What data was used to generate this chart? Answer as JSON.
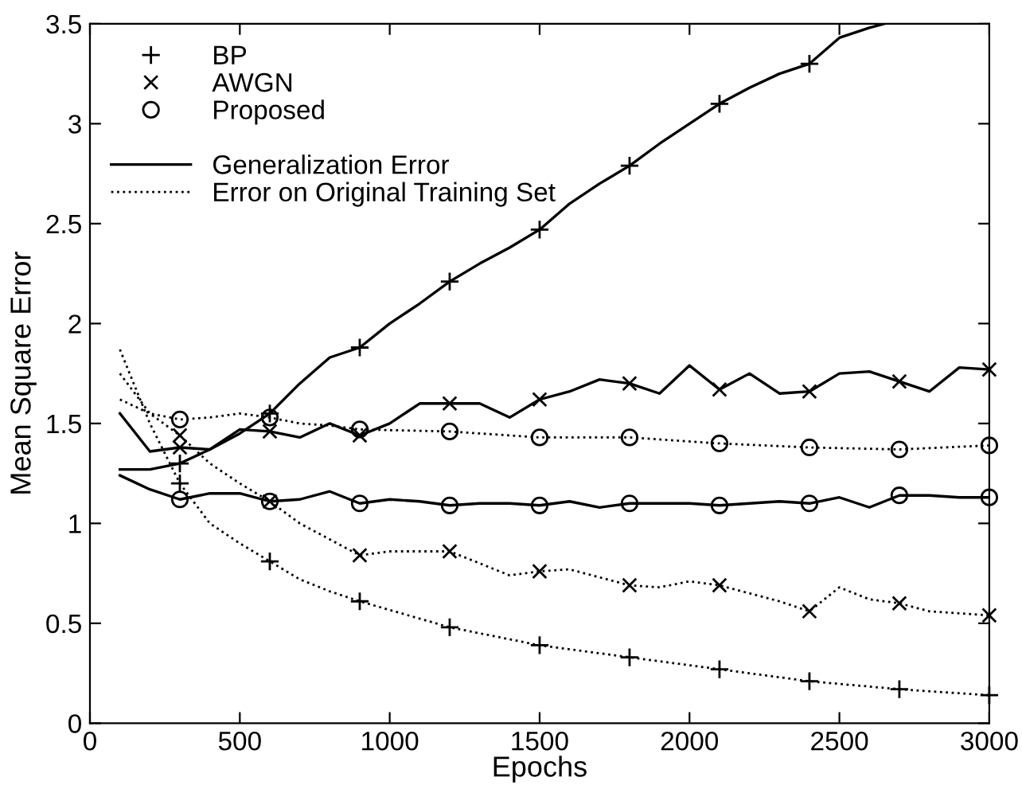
{
  "chart_data": {
    "type": "line",
    "xlabel": "Epochs",
    "ylabel": "Mean Square Error",
    "xlim": [
      0,
      3000
    ],
    "ylim": [
      0,
      3.5
    ],
    "xticks": [
      0,
      500,
      1000,
      1500,
      2000,
      2500,
      3000
    ],
    "yticks": [
      0,
      0.5,
      1,
      1.5,
      2,
      2.5,
      3,
      3.5
    ],
    "grid": false,
    "legend": "top left",
    "annotations": [
      "Generalization Error",
      "Error on Original Training Set"
    ],
    "series": [
      {
        "color": "#000000",
        "line_style": "solid",
        "x": [
          100,
          200,
          300,
          400,
          500,
          600,
          700,
          800,
          900,
          1000,
          1100,
          1200,
          1300,
          1400,
          1500,
          1600,
          1700,
          1800,
          1900,
          2000,
          2100,
          2200,
          2300,
          2400,
          2500,
          2600,
          2650
        ],
        "values": [
          1.27,
          1.27,
          1.3,
          1.37,
          1.45,
          1.55,
          1.7,
          1.83,
          1.88,
          2.0,
          2.1,
          2.21,
          2.3,
          2.38,
          2.47,
          2.6,
          2.7,
          2.79,
          2.9,
          3.0,
          3.1,
          3.18,
          3.25,
          3.3,
          3.43,
          3.48,
          3.5
        ]
      },
      {
        "color": "#000000",
        "line_style": "dotted",
        "x": [
          100,
          200,
          300,
          400,
          500,
          600,
          700,
          800,
          900,
          1200,
          1500,
          1800,
          2100,
          2400,
          2700,
          3000
        ],
        "values": [
          1.87,
          1.5,
          1.2,
          1.0,
          0.9,
          0.81,
          0.72,
          0.66,
          0.61,
          0.48,
          0.39,
          0.33,
          0.27,
          0.21,
          0.17,
          0.14
        ]
      },
      {
        "color": "#000000",
        "line_style": "solid",
        "x": [
          100,
          200,
          300,
          400,
          500,
          600,
          700,
          800,
          900,
          1000,
          1100,
          1200,
          1300,
          1400,
          1500,
          1600,
          1700,
          1800,
          1900,
          2000,
          2100,
          2200,
          2300,
          2400,
          2500,
          2600,
          2700,
          2800,
          2900,
          3000
        ],
        "values": [
          1.55,
          1.36,
          1.38,
          1.37,
          1.47,
          1.46,
          1.43,
          1.5,
          1.44,
          1.5,
          1.6,
          1.6,
          1.6,
          1.53,
          1.62,
          1.66,
          1.72,
          1.7,
          1.65,
          1.79,
          1.67,
          1.75,
          1.65,
          1.66,
          1.75,
          1.76,
          1.71,
          1.66,
          1.78,
          1.77
        ]
      },
      {
        "color": "#000000",
        "line_style": "dotted",
        "x": [
          100,
          200,
          300,
          400,
          500,
          600,
          700,
          800,
          900,
          1000,
          1100,
          1200,
          1300,
          1400,
          1500,
          1600,
          1700,
          1800,
          1900,
          2000,
          2100,
          2200,
          2300,
          2400,
          2500,
          2600,
          2700,
          2800,
          2900,
          3000
        ],
        "values": [
          1.75,
          1.55,
          1.44,
          1.3,
          1.2,
          1.11,
          1.0,
          0.92,
          0.84,
          0.86,
          0.86,
          0.86,
          0.8,
          0.74,
          0.76,
          0.77,
          0.73,
          0.69,
          0.68,
          0.71,
          0.69,
          0.65,
          0.61,
          0.56,
          0.68,
          0.62,
          0.6,
          0.56,
          0.55,
          0.54
        ]
      },
      {
        "color": "#000000",
        "line_style": "solid",
        "x": [
          100,
          200,
          300,
          400,
          500,
          600,
          700,
          800,
          900,
          1000,
          1100,
          1200,
          1300,
          1400,
          1500,
          1600,
          1700,
          1800,
          1900,
          2000,
          2100,
          2200,
          2300,
          2400,
          2500,
          2600,
          2700,
          2800,
          2900,
          3000
        ],
        "values": [
          1.24,
          1.17,
          1.12,
          1.15,
          1.15,
          1.11,
          1.12,
          1.16,
          1.1,
          1.12,
          1.11,
          1.09,
          1.1,
          1.1,
          1.09,
          1.11,
          1.08,
          1.1,
          1.1,
          1.1,
          1.09,
          1.1,
          1.11,
          1.1,
          1.13,
          1.08,
          1.14,
          1.14,
          1.13,
          1.13
        ]
      },
      {
        "color": "#000000",
        "line_style": "dotted",
        "x": [
          100,
          200,
          300,
          400,
          500,
          600,
          700,
          800,
          900,
          1200,
          1500,
          1800,
          2100,
          2400,
          2700,
          3000
        ],
        "values": [
          1.62,
          1.55,
          1.52,
          1.53,
          1.55,
          1.53,
          1.5,
          1.49,
          1.47,
          1.46,
          1.43,
          1.43,
          1.4,
          1.38,
          1.37,
          1.39
        ]
      },
      {
        "name": "BP",
        "type": "scatter",
        "color": "#000000",
        "marker": "cross",
        "x": [
          300,
          600,
          900,
          1200,
          1500,
          1800,
          2100,
          2400
        ],
        "values": [
          1.3,
          1.55,
          1.88,
          2.21,
          2.47,
          2.79,
          3.1,
          3.3
        ]
      },
      {
        "type": "scatter",
        "color": "#000000",
        "marker": "cross",
        "x": [
          300,
          600,
          900,
          1200,
          1500,
          1800,
          2100,
          2400,
          2700,
          3000
        ],
        "values": [
          1.2,
          0.81,
          0.61,
          0.48,
          0.39,
          0.33,
          0.27,
          0.21,
          0.17,
          0.14
        ]
      },
      {
        "name": "AWGN",
        "type": "scatter",
        "color": "#000000",
        "marker": "x",
        "x": [
          300,
          600,
          900,
          1200,
          1500,
          1800,
          2100,
          2400,
          2700,
          3000
        ],
        "values": [
          1.38,
          1.46,
          1.44,
          1.6,
          1.62,
          1.7,
          1.67,
          1.66,
          1.71,
          1.77
        ]
      },
      {
        "type": "scatter",
        "color": "#000000",
        "marker": "x",
        "x": [
          300,
          600,
          900,
          1200,
          1500,
          1800,
          2100,
          2400,
          2700,
          3000
        ],
        "values": [
          1.44,
          1.11,
          0.84,
          0.86,
          0.76,
          0.69,
          0.69,
          0.56,
          0.6,
          0.54
        ]
      },
      {
        "name": "Proposed",
        "type": "scatter",
        "color": "#000000",
        "marker": "circle",
        "x": [
          300,
          600,
          900,
          1200,
          1500,
          1800,
          2100,
          2400,
          2700,
          3000
        ],
        "values": [
          1.12,
          1.11,
          1.1,
          1.09,
          1.09,
          1.1,
          1.09,
          1.1,
          1.14,
          1.13
        ]
      },
      {
        "type": "scatter",
        "color": "#000000",
        "marker": "circle",
        "x": [
          300,
          600,
          900,
          1200,
          1500,
          1800,
          2100,
          2400,
          2700,
          3000
        ],
        "values": [
          1.52,
          1.53,
          1.47,
          1.46,
          1.43,
          1.43,
          1.4,
          1.38,
          1.37,
          1.39
        ]
      }
    ]
  }
}
